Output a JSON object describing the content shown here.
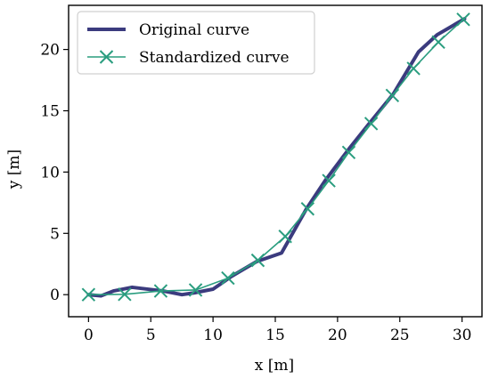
{
  "chart_data": {
    "type": "line",
    "xlabel": "x [m]",
    "ylabel": "y [m]",
    "xlim": [
      -1.6,
      31.6
    ],
    "ylim": [
      -1.8,
      23.6
    ],
    "xticks": [
      0,
      5,
      10,
      15,
      20,
      25,
      30
    ],
    "yticks": [
      0,
      5,
      10,
      15,
      20
    ],
    "xtick_labels": [
      "0",
      "5",
      "10",
      "15",
      "20",
      "25",
      "30"
    ],
    "ytick_labels": [
      "0",
      "5",
      "10",
      "15",
      "20"
    ],
    "grid": false,
    "legend_position": "top-left",
    "series": [
      {
        "name": "Original curve",
        "color": "#3b3b7e",
        "marker": "none",
        "points": [
          [
            0,
            0
          ],
          [
            1,
            -0.1
          ],
          [
            2,
            0.3
          ],
          [
            3.5,
            0.6
          ],
          [
            6,
            0.3
          ],
          [
            7.5,
            0.0
          ],
          [
            8.5,
            0.15
          ],
          [
            10,
            0.45
          ],
          [
            11.5,
            1.5
          ],
          [
            13.5,
            2.7
          ],
          [
            15.5,
            3.4
          ],
          [
            17.5,
            7.0
          ],
          [
            19,
            9.3
          ],
          [
            21,
            12.0
          ],
          [
            22.5,
            13.9
          ],
          [
            24.5,
            16.4
          ],
          [
            26.5,
            19.8
          ],
          [
            28,
            21.2
          ],
          [
            30.2,
            22.5
          ]
        ]
      },
      {
        "name": "Standardized curve",
        "color": "#2a9d7f",
        "marker": "x",
        "points": [
          [
            0,
            0
          ],
          [
            2.9,
            0.03
          ],
          [
            5.8,
            0.3
          ],
          [
            8.6,
            0.38
          ],
          [
            11.2,
            1.35
          ],
          [
            13.6,
            2.8
          ],
          [
            15.8,
            4.75
          ],
          [
            17.6,
            7.0
          ],
          [
            19.3,
            9.3
          ],
          [
            20.9,
            11.6
          ],
          [
            22.7,
            13.95
          ],
          [
            24.4,
            16.25
          ],
          [
            26.1,
            18.45
          ],
          [
            28.1,
            20.6
          ],
          [
            30.1,
            22.45
          ]
        ]
      }
    ]
  }
}
